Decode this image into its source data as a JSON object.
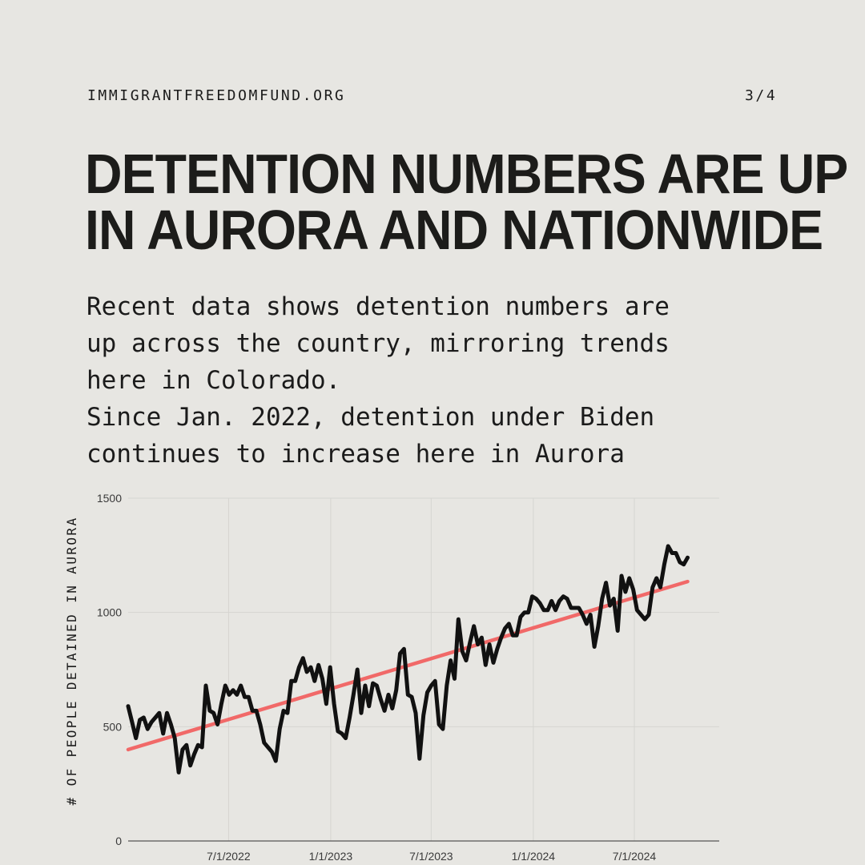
{
  "header": {
    "site": "IMMIGRANTFREEDOMFUND.ORG",
    "page": "3/4"
  },
  "title_lines": [
    "DETENTION NUMBERS ARE UP",
    "IN AURORA AND NATIONWIDE"
  ],
  "body_lines": [
    "Recent data shows detention numbers are",
    "up across the country, mirroring trends",
    "here in Colorado.",
    "Since Jan. 2022, detention under Biden",
    "continues to increase here in Aurora"
  ],
  "chart_data": {
    "type": "line",
    "title": "",
    "xlabel": "",
    "ylabel": "# OF PEOPLE DETAINED IN AURORA",
    "ylim": [
      0,
      1500
    ],
    "xlim": [
      "2022-01-01",
      "2024-12-01"
    ],
    "grid": true,
    "y_ticks": [
      0,
      500,
      1000,
      1500
    ],
    "x_ticks": [
      {
        "date": "2022-07-01",
        "label": "7/1/2022"
      },
      {
        "date": "2023-01-01",
        "label": "1/1/2023"
      },
      {
        "date": "2023-07-01",
        "label": "7/1/2023"
      },
      {
        "date": "2024-01-01",
        "label": "1/1/2024"
      },
      {
        "date": "2024-07-01",
        "label": "7/1/2024"
      }
    ],
    "series": [
      {
        "values": [
          [
            "2022-01-01",
            590
          ],
          [
            "2022-01-08",
            520
          ],
          [
            "2022-01-15",
            450
          ],
          [
            "2022-01-22",
            530
          ],
          [
            "2022-01-29",
            540
          ],
          [
            "2022-02-05",
            490
          ],
          [
            "2022-02-12",
            520
          ],
          [
            "2022-02-19",
            540
          ],
          [
            "2022-02-26",
            560
          ],
          [
            "2022-03-05",
            470
          ],
          [
            "2022-03-12",
            560
          ],
          [
            "2022-03-19",
            510
          ],
          [
            "2022-03-26",
            450
          ],
          [
            "2022-04-02",
            300
          ],
          [
            "2022-04-09",
            400
          ],
          [
            "2022-04-16",
            420
          ],
          [
            "2022-04-23",
            330
          ],
          [
            "2022-04-30",
            380
          ],
          [
            "2022-05-07",
            420
          ],
          [
            "2022-05-14",
            410
          ],
          [
            "2022-05-21",
            680
          ],
          [
            "2022-05-28",
            570
          ],
          [
            "2022-06-04",
            560
          ],
          [
            "2022-06-11",
            510
          ],
          [
            "2022-06-18",
            600
          ],
          [
            "2022-06-25",
            680
          ],
          [
            "2022-07-02",
            640
          ],
          [
            "2022-07-09",
            660
          ],
          [
            "2022-07-16",
            640
          ],
          [
            "2022-07-23",
            680
          ],
          [
            "2022-07-30",
            630
          ],
          [
            "2022-08-06",
            630
          ],
          [
            "2022-08-13",
            570
          ],
          [
            "2022-08-20",
            570
          ],
          [
            "2022-08-27",
            510
          ],
          [
            "2022-09-03",
            430
          ],
          [
            "2022-09-10",
            410
          ],
          [
            "2022-09-17",
            390
          ],
          [
            "2022-09-24",
            350
          ],
          [
            "2022-10-01",
            490
          ],
          [
            "2022-10-08",
            570
          ],
          [
            "2022-10-15",
            560
          ],
          [
            "2022-10-22",
            700
          ],
          [
            "2022-10-29",
            700
          ],
          [
            "2022-11-05",
            760
          ],
          [
            "2022-11-12",
            800
          ],
          [
            "2022-11-19",
            740
          ],
          [
            "2022-11-26",
            760
          ],
          [
            "2022-12-03",
            700
          ],
          [
            "2022-12-10",
            770
          ],
          [
            "2022-12-17",
            710
          ],
          [
            "2022-12-24",
            600
          ],
          [
            "2022-12-31",
            760
          ],
          [
            "2023-01-07",
            600
          ],
          [
            "2023-01-14",
            480
          ],
          [
            "2023-01-21",
            470
          ],
          [
            "2023-01-28",
            450
          ],
          [
            "2023-02-04",
            540
          ],
          [
            "2023-02-11",
            640
          ],
          [
            "2023-02-18",
            750
          ],
          [
            "2023-02-25",
            560
          ],
          [
            "2023-03-04",
            680
          ],
          [
            "2023-03-11",
            590
          ],
          [
            "2023-03-18",
            690
          ],
          [
            "2023-03-25",
            680
          ],
          [
            "2023-04-01",
            620
          ],
          [
            "2023-04-08",
            570
          ],
          [
            "2023-04-15",
            640
          ],
          [
            "2023-04-22",
            580
          ],
          [
            "2023-04-29",
            660
          ],
          [
            "2023-05-06",
            820
          ],
          [
            "2023-05-13",
            840
          ],
          [
            "2023-05-20",
            640
          ],
          [
            "2023-05-27",
            630
          ],
          [
            "2023-06-03",
            560
          ],
          [
            "2023-06-10",
            360
          ],
          [
            "2023-06-17",
            550
          ],
          [
            "2023-06-24",
            650
          ],
          [
            "2023-07-01",
            680
          ],
          [
            "2023-07-08",
            700
          ],
          [
            "2023-07-15",
            510
          ],
          [
            "2023-07-22",
            490
          ],
          [
            "2023-07-29",
            680
          ],
          [
            "2023-08-05",
            790
          ],
          [
            "2023-08-12",
            710
          ],
          [
            "2023-08-19",
            970
          ],
          [
            "2023-08-26",
            830
          ],
          [
            "2023-09-02",
            790
          ],
          [
            "2023-09-09",
            870
          ],
          [
            "2023-09-16",
            940
          ],
          [
            "2023-09-23",
            860
          ],
          [
            "2023-09-30",
            890
          ],
          [
            "2023-10-07",
            770
          ],
          [
            "2023-10-14",
            860
          ],
          [
            "2023-10-21",
            780
          ],
          [
            "2023-10-28",
            840
          ],
          [
            "2023-11-04",
            890
          ],
          [
            "2023-11-11",
            930
          ],
          [
            "2023-11-18",
            950
          ],
          [
            "2023-11-25",
            900
          ],
          [
            "2023-12-02",
            900
          ],
          [
            "2023-12-09",
            980
          ],
          [
            "2023-12-16",
            1000
          ],
          [
            "2023-12-23",
            1000
          ],
          [
            "2023-12-30",
            1070
          ],
          [
            "2024-01-06",
            1060
          ],
          [
            "2024-01-13",
            1040
          ],
          [
            "2024-01-20",
            1010
          ],
          [
            "2024-01-27",
            1010
          ],
          [
            "2024-02-03",
            1050
          ],
          [
            "2024-02-10",
            1010
          ],
          [
            "2024-02-17",
            1050
          ],
          [
            "2024-02-24",
            1070
          ],
          [
            "2024-03-02",
            1060
          ],
          [
            "2024-03-09",
            1020
          ],
          [
            "2024-03-16",
            1020
          ],
          [
            "2024-03-23",
            1020
          ],
          [
            "2024-03-30",
            990
          ],
          [
            "2024-04-06",
            950
          ],
          [
            "2024-04-13",
            990
          ],
          [
            "2024-04-20",
            850
          ],
          [
            "2024-04-27",
            940
          ],
          [
            "2024-05-04",
            1060
          ],
          [
            "2024-05-11",
            1130
          ],
          [
            "2024-05-18",
            1030
          ],
          [
            "2024-05-25",
            1060
          ],
          [
            "2024-06-01",
            920
          ],
          [
            "2024-06-08",
            1160
          ],
          [
            "2024-06-15",
            1090
          ],
          [
            "2024-06-22",
            1150
          ],
          [
            "2024-06-29",
            1100
          ],
          [
            "2024-07-06",
            1010
          ],
          [
            "2024-07-13",
            990
          ],
          [
            "2024-07-20",
            970
          ],
          [
            "2024-07-27",
            990
          ],
          [
            "2024-08-03",
            1110
          ],
          [
            "2024-08-10",
            1150
          ],
          [
            "2024-08-17",
            1110
          ],
          [
            "2024-08-24",
            1210
          ],
          [
            "2024-08-31",
            1290
          ],
          [
            "2024-09-07",
            1260
          ],
          [
            "2024-09-14",
            1260
          ],
          [
            "2024-09-21",
            1220
          ],
          [
            "2024-09-28",
            1210
          ],
          [
            "2024-10-05",
            1240
          ]
        ],
        "color": "#111111"
      },
      {
        "values": [
          [
            "2022-01-01",
            400
          ],
          [
            "2024-10-05",
            1135
          ]
        ],
        "color": "#f25b5b"
      }
    ]
  }
}
